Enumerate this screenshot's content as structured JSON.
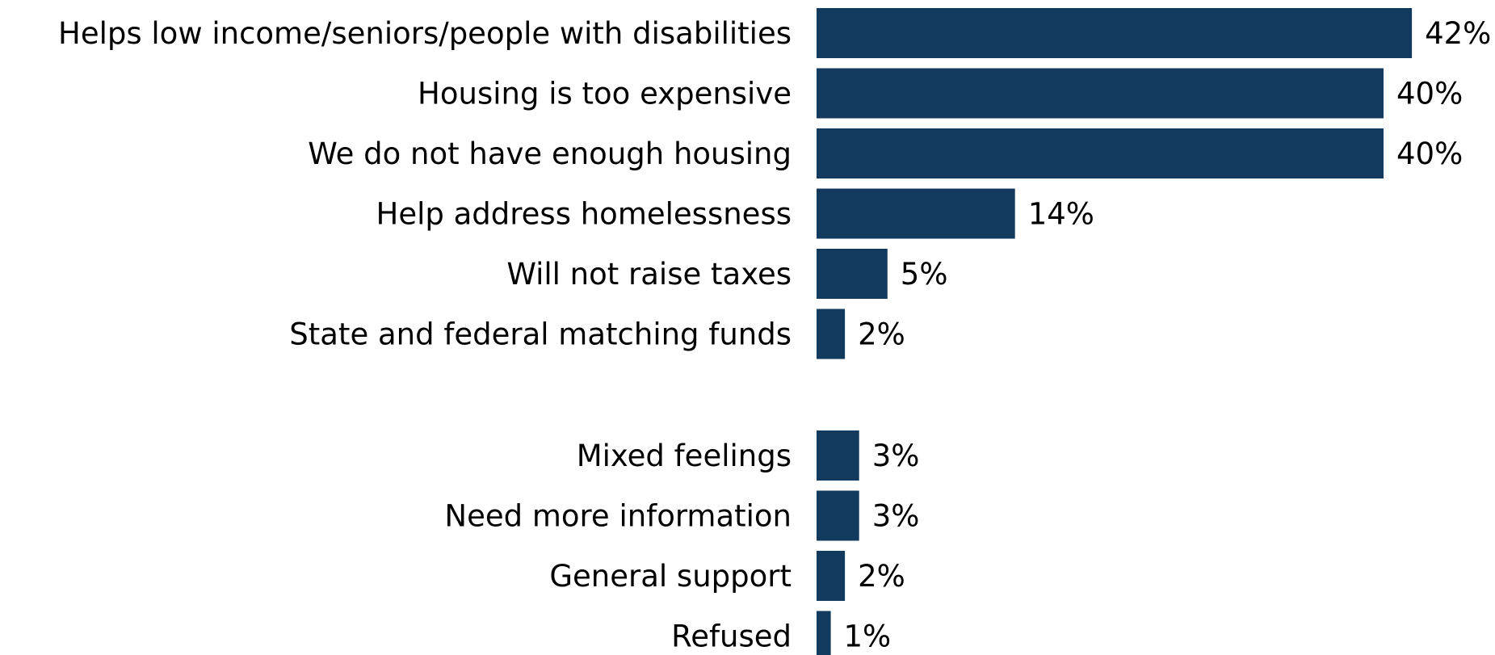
{
  "chart_data": {
    "type": "bar",
    "orientation": "horizontal",
    "title": "",
    "xlabel": "",
    "ylabel": "",
    "categories": [
      "Helps low income/seniors/people with disabilities",
      "Housing is too expensive",
      "We do not have enough housing",
      "Help address homelessness",
      "Will not raise taxes",
      "State and federal matching funds",
      "Mixed feelings",
      "Need more information",
      "General support",
      "Refused"
    ],
    "values": [
      42,
      40,
      40,
      14,
      5,
      2,
      3,
      3,
      2,
      1
    ],
    "value_labels": [
      "42%",
      "40%",
      "40%",
      "14%",
      "5%",
      "2%",
      "3%",
      "3%",
      "2%",
      "1%"
    ],
    "groups": [
      {
        "start": 0,
        "end": 5
      },
      {
        "start": 6,
        "end": 9
      }
    ],
    "xlim": [
      0,
      42
    ],
    "grid": false,
    "legend": "none",
    "bar_color": "#123a5e"
  }
}
